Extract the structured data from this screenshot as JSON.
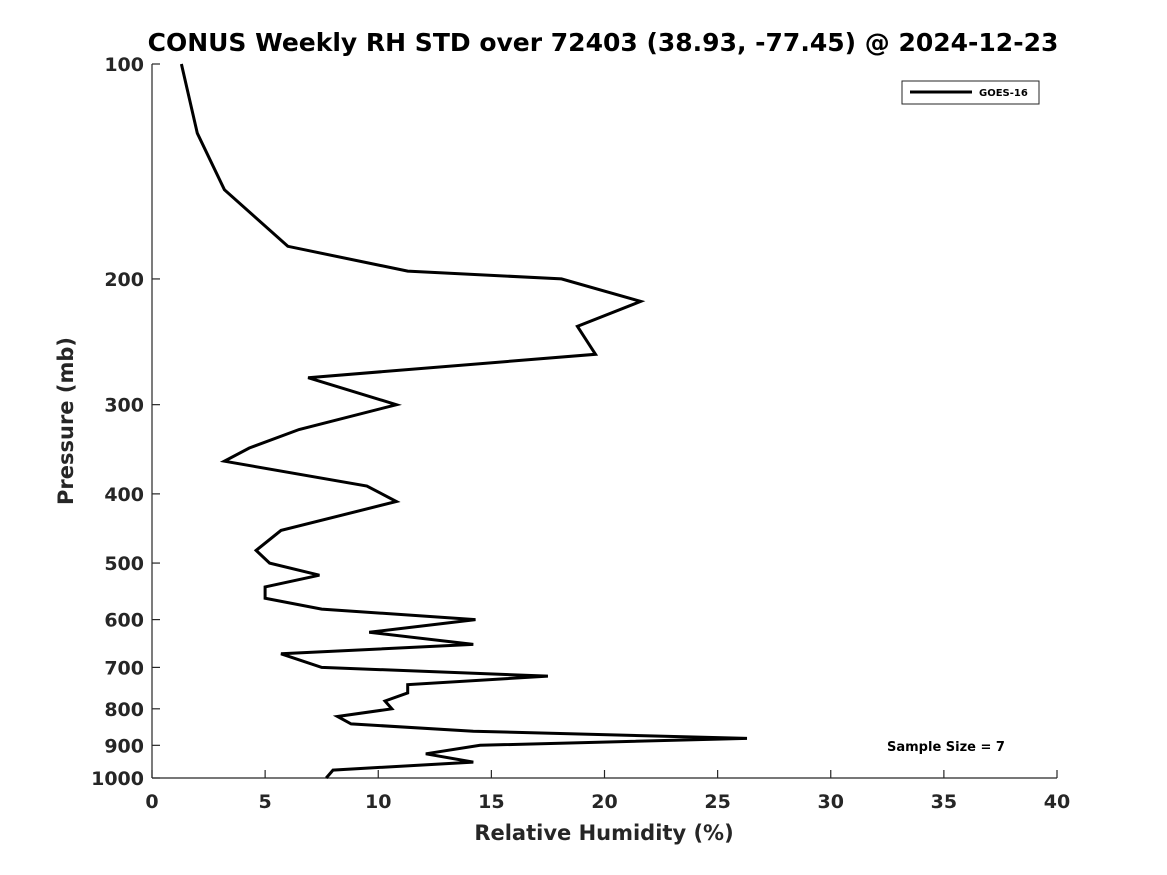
{
  "chart_data": {
    "type": "line",
    "title": "CONUS Weekly RH STD over 72403 (38.93, -77.45) @ 2024-12-23",
    "xlabel": "Relative Humidity (%)",
    "ylabel": "Pressure (mb)",
    "xlim": [
      0,
      40
    ],
    "ylim": [
      1000,
      100
    ],
    "y_scale": "log",
    "y_direction": "reversed",
    "grid": false,
    "x_ticks": [
      "0",
      "5",
      "10",
      "15",
      "20",
      "25",
      "30",
      "35",
      "40"
    ],
    "x_tick_values": [
      0,
      5,
      10,
      15,
      20,
      25,
      30,
      35,
      40
    ],
    "y_ticks": [
      "100",
      "200",
      "300",
      "400",
      "500",
      "600",
      "700",
      "800",
      "900",
      "1000"
    ],
    "y_tick_values": [
      100,
      200,
      300,
      400,
      500,
      600,
      700,
      800,
      900,
      1000
    ],
    "legend": {
      "position": "top-right",
      "entries": [
        "GOES-16"
      ]
    },
    "annotation": "Sample Size = 7",
    "series": [
      {
        "name": "GOES-16",
        "color": "#000000",
        "points": [
          [
            1.3,
            100
          ],
          [
            2.0,
            125
          ],
          [
            3.2,
            150
          ],
          [
            6.0,
            180
          ],
          [
            11.3,
            195
          ],
          [
            18.1,
            200
          ],
          [
            21.6,
            215
          ],
          [
            18.8,
            233
          ],
          [
            19.6,
            255
          ],
          [
            6.9,
            275
          ],
          [
            10.8,
            300
          ],
          [
            6.5,
            325
          ],
          [
            4.3,
            345
          ],
          [
            3.2,
            360
          ],
          [
            9.5,
            390
          ],
          [
            10.8,
            410
          ],
          [
            5.7,
            450
          ],
          [
            4.6,
            480
          ],
          [
            5.2,
            500
          ],
          [
            7.4,
            520
          ],
          [
            5.0,
            540
          ],
          [
            5.0,
            560
          ],
          [
            7.5,
            580
          ],
          [
            14.3,
            600
          ],
          [
            9.6,
            625
          ],
          [
            14.2,
            650
          ],
          [
            5.7,
            670
          ],
          [
            7.5,
            700
          ],
          [
            17.5,
            720
          ],
          [
            11.3,
            740
          ],
          [
            11.3,
            760
          ],
          [
            10.3,
            780
          ],
          [
            10.6,
            800
          ],
          [
            8.2,
            820
          ],
          [
            8.8,
            840
          ],
          [
            14.2,
            860
          ],
          [
            26.3,
            880
          ],
          [
            14.5,
            900
          ],
          [
            12.1,
            925
          ],
          [
            14.2,
            950
          ],
          [
            8.0,
            975
          ],
          [
            7.7,
            1000
          ]
        ]
      }
    ]
  }
}
